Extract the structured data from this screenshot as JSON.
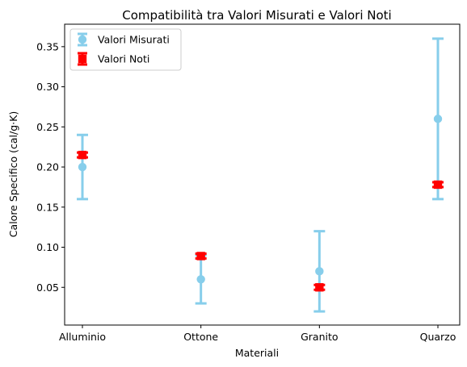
{
  "chart_data": {
    "type": "scatter",
    "title": "Compatibilità tra Valori Misurati e Valori Noti",
    "xlabel": "Materiali",
    "ylabel": "Calore Specifico (cal/g·K)",
    "categories": [
      "Alluminio",
      "Ottone",
      "Granito",
      "Quarzo"
    ],
    "ylim": [
      0.003,
      0.378
    ],
    "yticks": [
      "0.05",
      "0.10",
      "0.15",
      "0.20",
      "0.25",
      "0.30",
      "0.35"
    ],
    "grid": false,
    "legend_position": "top-left",
    "series": [
      {
        "name": "Valori Misurati",
        "color": "#87ceeb",
        "values": [
          0.2,
          0.06,
          0.07,
          0.26
        ],
        "errors": [
          0.04,
          0.03,
          0.05,
          0.1
        ]
      },
      {
        "name": "Valori Noti",
        "color": "#ff0000",
        "values": [
          0.215,
          0.089,
          0.05,
          0.178
        ],
        "errors": [
          0.003,
          0.003,
          0.003,
          0.003
        ]
      }
    ]
  }
}
